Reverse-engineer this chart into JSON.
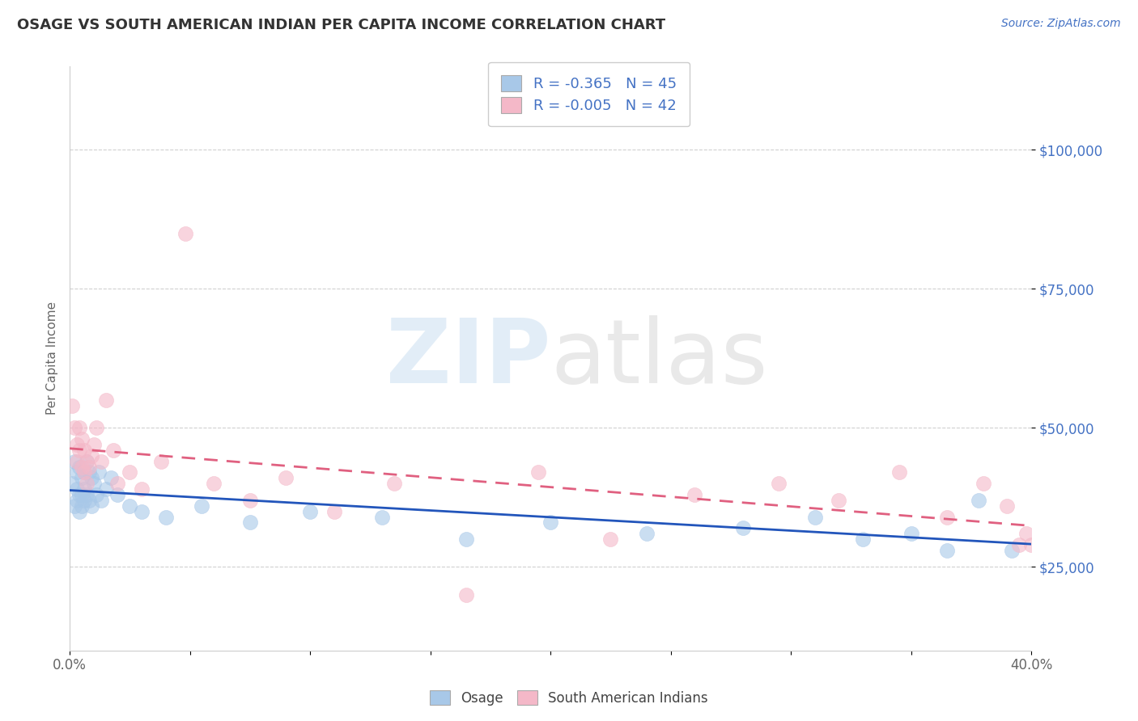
{
  "title": "OSAGE VS SOUTH AMERICAN INDIAN PER CAPITA INCOME CORRELATION CHART",
  "source": "Source: ZipAtlas.com",
  "ylabel": "Per Capita Income",
  "xlabel": "",
  "xlim": [
    0.0,
    0.4
  ],
  "ylim": [
    10000,
    115000
  ],
  "yticks": [
    25000,
    50000,
    75000,
    100000
  ],
  "ytick_labels": [
    "$25,000",
    "$50,000",
    "$75,000",
    "$100,000"
  ],
  "background_color": "#ffffff",
  "grid_color": "#d0d0d0",
  "title_color": "#333333",
  "title_fontsize": 13,
  "source_color": "#4472c4",
  "source_fontsize": 10,
  "ylabel_color": "#666666",
  "ylabel_fontsize": 11,
  "osage_color": "#a8c8e8",
  "south_american_color": "#f4b8c8",
  "osage_line_color": "#2255bb",
  "south_american_line_color": "#e06080",
  "legend_r_osage": "-0.365",
  "legend_n_osage": "45",
  "legend_r_south": "-0.005",
  "legend_n_south": "42",
  "legend_color": "#4472c4",
  "marker_size": 13,
  "marker_alpha": 0.6,
  "osage_x": [
    0.001,
    0.002,
    0.002,
    0.003,
    0.003,
    0.003,
    0.004,
    0.004,
    0.004,
    0.005,
    0.005,
    0.005,
    0.006,
    0.006,
    0.006,
    0.007,
    0.007,
    0.008,
    0.008,
    0.009,
    0.009,
    0.01,
    0.011,
    0.012,
    0.013,
    0.015,
    0.017,
    0.02,
    0.025,
    0.03,
    0.04,
    0.055,
    0.075,
    0.1,
    0.13,
    0.165,
    0.2,
    0.24,
    0.28,
    0.31,
    0.33,
    0.35,
    0.365,
    0.378,
    0.392
  ],
  "osage_y": [
    40000,
    44000,
    36000,
    42000,
    39000,
    37000,
    43000,
    38000,
    35000,
    41000,
    38000,
    36000,
    42000,
    39000,
    37000,
    44000,
    38000,
    42000,
    37000,
    41000,
    36000,
    40000,
    38000,
    42000,
    37000,
    39000,
    41000,
    38000,
    36000,
    35000,
    34000,
    36000,
    33000,
    35000,
    34000,
    30000,
    33000,
    31000,
    32000,
    34000,
    30000,
    31000,
    28000,
    37000,
    28000
  ],
  "south_x": [
    0.001,
    0.002,
    0.003,
    0.003,
    0.004,
    0.004,
    0.005,
    0.005,
    0.006,
    0.006,
    0.007,
    0.007,
    0.008,
    0.009,
    0.01,
    0.011,
    0.013,
    0.015,
    0.018,
    0.02,
    0.025,
    0.03,
    0.038,
    0.048,
    0.06,
    0.075,
    0.09,
    0.11,
    0.135,
    0.165,
    0.195,
    0.225,
    0.26,
    0.295,
    0.32,
    0.345,
    0.365,
    0.38,
    0.39,
    0.395,
    0.398,
    0.4
  ],
  "south_y": [
    54000,
    50000,
    47000,
    44000,
    50000,
    46000,
    48000,
    43000,
    46000,
    42000,
    44000,
    40000,
    43000,
    45000,
    47000,
    50000,
    44000,
    55000,
    46000,
    40000,
    42000,
    39000,
    44000,
    85000,
    40000,
    37000,
    41000,
    35000,
    40000,
    20000,
    42000,
    30000,
    38000,
    40000,
    37000,
    42000,
    34000,
    40000,
    36000,
    29000,
    31000,
    29000
  ]
}
